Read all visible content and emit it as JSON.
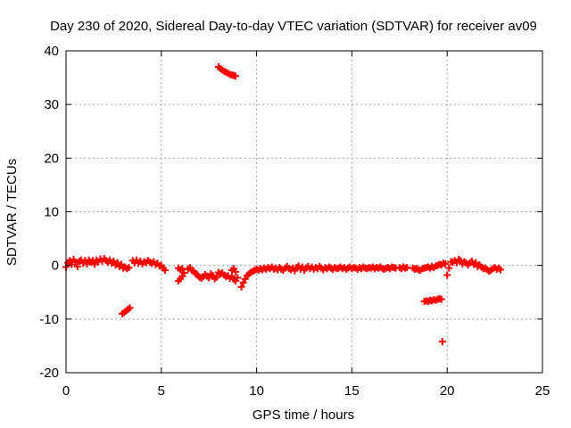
{
  "chart_data": {
    "type": "scatter",
    "title": "Day 230 of 2020, Sidereal Day-to-day VTEC variation (SDTVAR) for receiver av09",
    "xlabel": "GPS time / hours",
    "ylabel": "SDTVAR / TECUs",
    "xlim": [
      0,
      25
    ],
    "ylim": [
      -20,
      40
    ],
    "xticks": [
      0,
      5,
      10,
      15,
      20,
      25
    ],
    "yticks": [
      -20,
      -10,
      0,
      10,
      20,
      30,
      40
    ],
    "grid": true,
    "marker_color": "#ff0000",
    "series": [
      {
        "name": "SDTVAR",
        "points": [
          [
            0.0,
            -0.3
          ],
          [
            0.1,
            0.5
          ],
          [
            0.2,
            0.9
          ],
          [
            0.3,
            0.2
          ],
          [
            0.4,
            1.1
          ],
          [
            0.5,
            0.6
          ],
          [
            0.6,
            -0.2
          ],
          [
            0.7,
            0.8
          ],
          [
            0.8,
            1.0
          ],
          [
            0.9,
            0.4
          ],
          [
            1.0,
            0.9
          ],
          [
            1.1,
            0.3
          ],
          [
            1.2,
            1.0
          ],
          [
            1.3,
            0.6
          ],
          [
            1.4,
            0.9
          ],
          [
            1.5,
            0.2
          ],
          [
            1.6,
            1.0
          ],
          [
            1.7,
            0.7
          ],
          [
            1.8,
            1.2
          ],
          [
            1.9,
            0.8
          ],
          [
            2.0,
            1.3
          ],
          [
            2.1,
            0.9
          ],
          [
            2.2,
            0.6
          ],
          [
            2.3,
            1.0
          ],
          [
            2.4,
            0.4
          ],
          [
            2.5,
            0.8
          ],
          [
            2.6,
            0.1
          ],
          [
            2.7,
            0.5
          ],
          [
            2.8,
            -0.2
          ],
          [
            2.9,
            0.2
          ],
          [
            3.0,
            -0.5
          ],
          [
            3.1,
            -0.3
          ],
          [
            3.2,
            -0.6
          ],
          [
            3.3,
            -0.4
          ],
          [
            3.5,
            0.9
          ],
          [
            3.6,
            0.5
          ],
          [
            3.7,
            1.0
          ],
          [
            3.8,
            0.4
          ],
          [
            3.9,
            0.8
          ],
          [
            4.0,
            0.3
          ],
          [
            4.1,
            0.7
          ],
          [
            4.2,
            0.5
          ],
          [
            4.3,
            0.9
          ],
          [
            4.4,
            0.6
          ],
          [
            4.5,
            0.4
          ],
          [
            4.6,
            0.7
          ],
          [
            4.7,
            0.2
          ],
          [
            4.8,
            0.4
          ],
          [
            4.9,
            -0.1
          ],
          [
            5.0,
            0.0
          ],
          [
            5.1,
            -0.5
          ],
          [
            5.2,
            -0.9
          ],
          [
            2.95,
            -9.0
          ],
          [
            3.05,
            -8.8
          ],
          [
            3.15,
            -8.5
          ],
          [
            3.25,
            -8.2
          ],
          [
            3.35,
            -7.9
          ],
          [
            5.9,
            -0.5
          ],
          [
            6.0,
            -0.8
          ],
          [
            6.1,
            -0.6
          ],
          [
            5.9,
            -2.9
          ],
          [
            6.0,
            -2.5
          ],
          [
            6.1,
            -2.0
          ],
          [
            6.2,
            -1.4
          ],
          [
            6.4,
            -0.7
          ],
          [
            6.5,
            -0.4
          ],
          [
            6.6,
            -0.9
          ],
          [
            6.7,
            -1.1
          ],
          [
            6.8,
            -1.5
          ],
          [
            6.9,
            -1.8
          ],
          [
            7.0,
            -2.2
          ],
          [
            7.1,
            -2.4
          ],
          [
            7.2,
            -2.1
          ],
          [
            7.3,
            -1.7
          ],
          [
            7.4,
            -2.0
          ],
          [
            7.5,
            -2.3
          ],
          [
            7.6,
            -1.6
          ],
          [
            7.7,
            -1.9
          ],
          [
            7.8,
            -2.5
          ],
          [
            7.9,
            -2.2
          ],
          [
            8.0,
            -1.3
          ],
          [
            8.1,
            -1.6
          ],
          [
            8.2,
            -1.4
          ],
          [
            8.3,
            -1.8
          ],
          [
            8.4,
            -2.1
          ],
          [
            8.5,
            -1.9
          ],
          [
            8.6,
            -2.4
          ],
          [
            8.7,
            -2.0
          ],
          [
            8.8,
            -2.6
          ],
          [
            8.9,
            -2.9
          ],
          [
            9.0,
            -2.3
          ],
          [
            8.7,
            -0.9
          ],
          [
            8.8,
            -0.6
          ],
          [
            8.9,
            -1.2
          ],
          [
            9.2,
            -4.0
          ],
          [
            9.3,
            -3.2
          ],
          [
            9.4,
            -2.5
          ],
          [
            9.5,
            -1.9
          ],
          [
            9.6,
            -1.6
          ],
          [
            9.7,
            -1.3
          ],
          [
            9.8,
            -1.1
          ],
          [
            9.9,
            -0.9
          ],
          [
            10.0,
            -0.7
          ],
          [
            10.1,
            -0.9
          ],
          [
            10.2,
            -0.6
          ],
          [
            10.3,
            -0.8
          ],
          [
            10.4,
            -0.5
          ],
          [
            10.5,
            -0.7
          ],
          [
            10.6,
            -0.4
          ],
          [
            10.7,
            -0.6
          ],
          [
            10.8,
            -0.3
          ],
          [
            10.9,
            -0.7
          ],
          [
            11.0,
            -0.5
          ],
          [
            11.1,
            -0.8
          ],
          [
            11.2,
            -0.4
          ],
          [
            11.3,
            -0.7
          ],
          [
            11.4,
            -0.9
          ],
          [
            11.5,
            -0.5
          ],
          [
            11.6,
            -0.2
          ],
          [
            11.7,
            -0.6
          ],
          [
            11.8,
            -0.8
          ],
          [
            11.9,
            -0.5
          ],
          [
            12.0,
            -1.0
          ],
          [
            12.1,
            -0.4
          ],
          [
            12.2,
            -0.1
          ],
          [
            12.3,
            -0.7
          ],
          [
            12.4,
            -0.3
          ],
          [
            12.5,
            -0.9
          ],
          [
            12.6,
            -0.5
          ],
          [
            12.7,
            -0.2
          ],
          [
            12.8,
            -0.6
          ],
          [
            12.9,
            -0.3
          ],
          [
            13.0,
            -0.7
          ],
          [
            13.1,
            -0.4
          ],
          [
            13.2,
            -0.6
          ],
          [
            13.3,
            -0.2
          ],
          [
            13.4,
            -0.5
          ],
          [
            13.5,
            -0.8
          ],
          [
            13.6,
            -0.4
          ],
          [
            13.7,
            -0.6
          ],
          [
            13.8,
            -0.3
          ],
          [
            13.9,
            -0.5
          ],
          [
            14.0,
            -0.7
          ],
          [
            14.1,
            -0.4
          ],
          [
            14.2,
            -0.6
          ],
          [
            14.3,
            -0.5
          ],
          [
            14.4,
            -0.3
          ],
          [
            14.5,
            -0.6
          ],
          [
            14.6,
            -0.4
          ],
          [
            14.7,
            -0.7
          ],
          [
            14.8,
            -0.5
          ],
          [
            14.9,
            -0.3
          ],
          [
            15.0,
            -0.6
          ],
          [
            15.1,
            -0.4
          ],
          [
            15.2,
            -0.5
          ],
          [
            15.3,
            -0.7
          ],
          [
            15.4,
            -0.4
          ],
          [
            15.5,
            -0.6
          ],
          [
            15.6,
            -0.3
          ],
          [
            15.7,
            -0.5
          ],
          [
            15.8,
            -0.6
          ],
          [
            15.9,
            -0.4
          ],
          [
            16.0,
            -0.5
          ],
          [
            16.1,
            -0.3
          ],
          [
            16.2,
            -0.6
          ],
          [
            16.3,
            -0.4
          ],
          [
            16.4,
            -0.5
          ],
          [
            16.5,
            -0.3
          ],
          [
            16.6,
            -0.6
          ],
          [
            16.7,
            -0.7
          ],
          [
            16.8,
            -0.5
          ],
          [
            16.9,
            -0.4
          ],
          [
            17.0,
            -0.6
          ],
          [
            17.1,
            -0.3
          ],
          [
            17.2,
            -0.4
          ],
          [
            17.3,
            -0.5
          ],
          [
            17.5,
            -0.4
          ],
          [
            17.6,
            -0.6
          ],
          [
            17.7,
            -0.3
          ],
          [
            17.8,
            -0.5
          ],
          [
            17.9,
            -0.4
          ],
          [
            18.2,
            -0.5
          ],
          [
            18.3,
            -0.7
          ],
          [
            18.4,
            -0.6
          ],
          [
            18.5,
            -0.8
          ],
          [
            18.6,
            -0.9
          ],
          [
            18.7,
            -0.6
          ],
          [
            18.8,
            -0.5
          ],
          [
            18.9,
            -0.4
          ],
          [
            19.0,
            -0.3
          ],
          [
            19.1,
            -0.5
          ],
          [
            19.2,
            -0.2
          ],
          [
            19.3,
            -0.4
          ],
          [
            19.4,
            -0.1
          ],
          [
            19.5,
            0.0
          ],
          [
            19.6,
            0.2
          ],
          [
            19.7,
            0.1
          ],
          [
            19.8,
            0.4
          ],
          [
            19.9,
            0.3
          ],
          [
            20.0,
            -1.8
          ],
          [
            20.1,
            -0.5
          ],
          [
            20.2,
            0.7
          ],
          [
            20.3,
            0.6
          ],
          [
            20.4,
            0.9
          ],
          [
            20.5,
            0.5
          ],
          [
            20.6,
            1.1
          ],
          [
            20.7,
            0.9
          ],
          [
            20.8,
            0.3
          ],
          [
            20.9,
            0.7
          ],
          [
            21.0,
            0.4
          ],
          [
            21.1,
            0.1
          ],
          [
            21.2,
            0.5
          ],
          [
            21.3,
            0.8
          ],
          [
            21.4,
            0.2
          ],
          [
            21.5,
            0.5
          ],
          [
            21.6,
            -0.2
          ],
          [
            21.7,
            0.1
          ],
          [
            21.8,
            -0.3
          ],
          [
            21.9,
            -0.6
          ],
          [
            22.0,
            -0.5
          ],
          [
            22.1,
            -0.8
          ],
          [
            22.2,
            -1.1
          ],
          [
            22.3,
            -0.9
          ],
          [
            22.4,
            -0.6
          ],
          [
            22.5,
            -0.4
          ],
          [
            22.6,
            -0.7
          ],
          [
            22.7,
            -0.5
          ],
          [
            22.8,
            -0.8
          ],
          [
            18.8,
            -6.7
          ],
          [
            18.9,
            -6.6
          ],
          [
            19.0,
            -6.7
          ],
          [
            19.1,
            -6.5
          ],
          [
            19.2,
            -6.6
          ],
          [
            19.3,
            -6.4
          ],
          [
            19.4,
            -6.5
          ],
          [
            19.5,
            -6.3
          ],
          [
            19.6,
            -6.2
          ],
          [
            19.7,
            -6.3
          ],
          [
            19.75,
            -14.2
          ],
          [
            8.0,
            37.0
          ],
          [
            8.1,
            36.7
          ],
          [
            8.2,
            36.4
          ],
          [
            8.3,
            36.2
          ],
          [
            8.4,
            36.0
          ],
          [
            8.5,
            35.8
          ],
          [
            8.6,
            35.6
          ],
          [
            8.7,
            35.5
          ],
          [
            8.8,
            35.4
          ],
          [
            8.9,
            35.3
          ]
        ]
      }
    ]
  }
}
